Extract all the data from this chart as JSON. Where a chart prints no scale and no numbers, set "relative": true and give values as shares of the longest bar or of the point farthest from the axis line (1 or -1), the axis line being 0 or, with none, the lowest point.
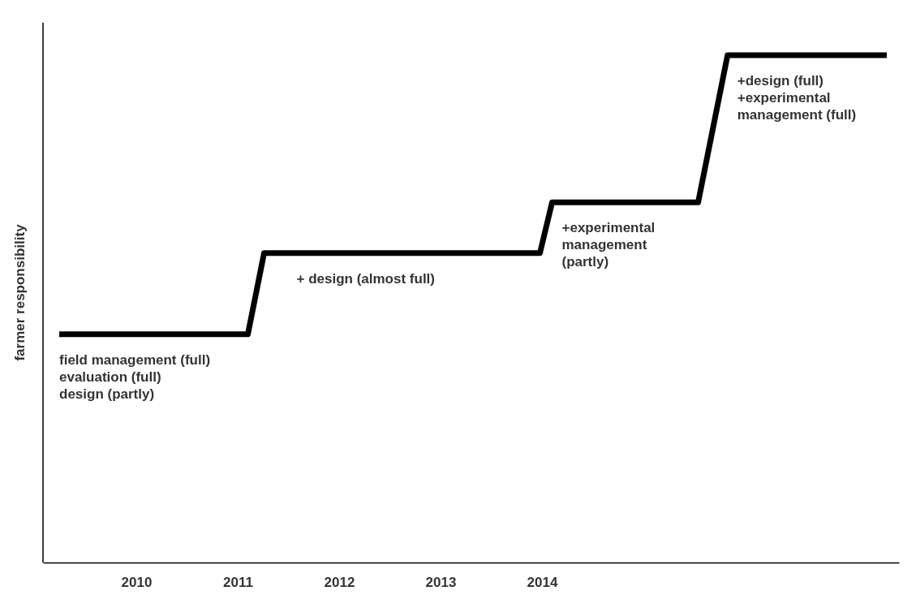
{
  "chart_data": {
    "type": "line",
    "ylabel": "farmer responsibility",
    "relative": true,
    "xlim": [
      2009.08,
      2017.52
    ],
    "xticks": [
      2010,
      2011,
      2012,
      2013,
      2014
    ],
    "series": [
      {
        "color": "#000000",
        "x": [
          2009.24,
          2011.1,
          2011.26,
          2013.98,
          2014.1,
          2015.54,
          2015.83,
          2017.4
        ],
        "values": [
          0.45,
          0.45,
          0.61,
          0.61,
          0.71,
          0.71,
          1,
          1
        ]
      }
    ],
    "annotations": [
      "field management (full)\nevaluation (full)\ndesign (partly)",
      "+ design (almost full)",
      "+experimental\nmanagement\n(partly)",
      "+design (full)\n+experimental\nmanagement (full)"
    ]
  }
}
